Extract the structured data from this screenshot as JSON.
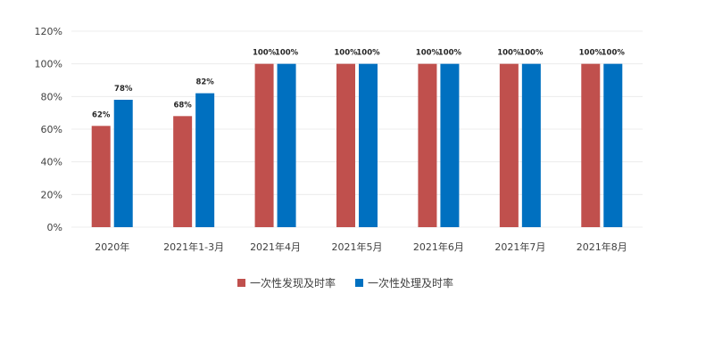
{
  "chart_data": {
    "type": "bar",
    "categories": [
      "2020年",
      "2021年1-3月",
      "2021年4月",
      "2021年5月",
      "2021年6月",
      "2021年7月",
      "2021年8月"
    ],
    "series": [
      {
        "name": "一次性发现及时率",
        "values": [
          62,
          68,
          100,
          100,
          100,
          100,
          100
        ],
        "labels": [
          "62%",
          "68%",
          "100%",
          "100%",
          "100%",
          "100%",
          "100%"
        ],
        "color": "#c0504d"
      },
      {
        "name": "一次性处理及时率",
        "values": [
          78,
          82,
          100,
          100,
          100,
          100,
          100
        ],
        "labels": [
          "78%",
          "82%",
          "100%",
          "100%",
          "100%",
          "100%",
          "100%"
        ],
        "color": "#0070c0"
      }
    ],
    "y_ticks": [
      "0%",
      "20%",
      "40%",
      "60%",
      "80%",
      "100%",
      "120%"
    ],
    "ylim": [
      0,
      120
    ],
    "grid": true,
    "legend_position": "bottom"
  }
}
